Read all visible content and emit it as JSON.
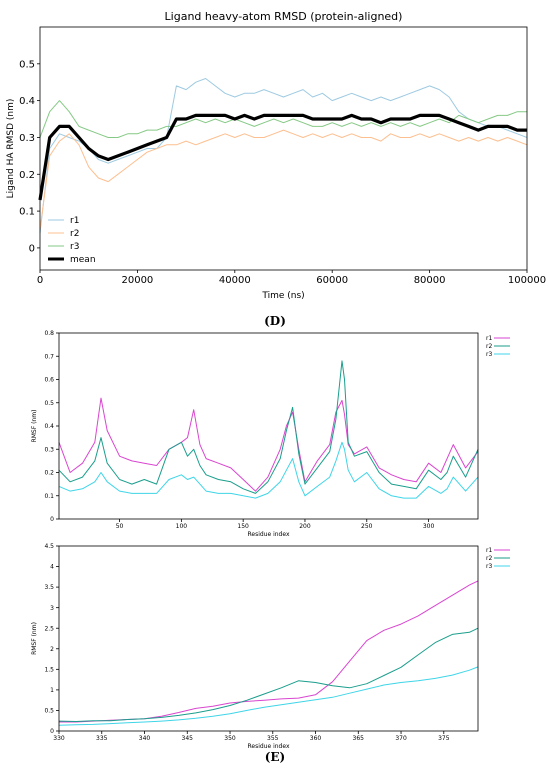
{
  "labels": {
    "panel_d": "(D)",
    "panel_e": "(E)"
  },
  "chart_data": [
    {
      "id": "rmsd",
      "type": "line",
      "title": "Ligand heavy-atom RMSD (protein-aligned)",
      "xlabel": "Time (ns)",
      "ylabel": "Ligand HA RMSD (nm)",
      "xlim": [
        0,
        100000
      ],
      "ylim": [
        -0.06,
        0.6
      ],
      "xticks": [
        0,
        20000,
        40000,
        60000,
        80000,
        100000
      ],
      "yticks": [
        0.0,
        0.1,
        0.2,
        0.3,
        0.4,
        0.5
      ],
      "grid": false,
      "legend_position": "lower-left",
      "x": [
        0,
        2000,
        4000,
        6000,
        8000,
        10000,
        12000,
        14000,
        16000,
        18000,
        20000,
        22000,
        24000,
        26000,
        28000,
        30000,
        32000,
        34000,
        36000,
        38000,
        40000,
        42000,
        44000,
        46000,
        48000,
        50000,
        52000,
        54000,
        56000,
        58000,
        60000,
        62000,
        64000,
        66000,
        68000,
        70000,
        72000,
        74000,
        76000,
        78000,
        80000,
        82000,
        84000,
        86000,
        88000,
        90000,
        92000,
        94000,
        96000,
        98000,
        100000
      ],
      "series": [
        {
          "name": "r1",
          "color": "#9ecae1",
          "values": [
            0.04,
            0.27,
            0.31,
            0.3,
            0.29,
            0.27,
            0.24,
            0.23,
            0.24,
            0.25,
            0.26,
            0.27,
            0.27,
            0.3,
            0.44,
            0.43,
            0.45,
            0.46,
            0.44,
            0.42,
            0.41,
            0.42,
            0.42,
            0.43,
            0.42,
            0.41,
            0.42,
            0.43,
            0.41,
            0.42,
            0.4,
            0.41,
            0.42,
            0.41,
            0.4,
            0.41,
            0.4,
            0.41,
            0.42,
            0.43,
            0.44,
            0.43,
            0.41,
            0.37,
            0.35,
            0.34,
            0.33,
            0.33,
            0.32,
            0.31,
            0.3
          ]
        },
        {
          "name": "r2",
          "color": "#fdbf8f",
          "values": [
            0.05,
            0.25,
            0.29,
            0.31,
            0.28,
            0.22,
            0.19,
            0.18,
            0.2,
            0.22,
            0.24,
            0.26,
            0.27,
            0.28,
            0.28,
            0.29,
            0.28,
            0.29,
            0.3,
            0.31,
            0.3,
            0.31,
            0.3,
            0.3,
            0.31,
            0.32,
            0.31,
            0.3,
            0.31,
            0.3,
            0.31,
            0.3,
            0.31,
            0.3,
            0.3,
            0.29,
            0.31,
            0.3,
            0.3,
            0.31,
            0.3,
            0.31,
            0.3,
            0.29,
            0.3,
            0.29,
            0.3,
            0.29,
            0.3,
            0.29,
            0.28
          ]
        },
        {
          "name": "r3",
          "color": "#86c986",
          "values": [
            0.3,
            0.37,
            0.4,
            0.37,
            0.33,
            0.32,
            0.31,
            0.3,
            0.3,
            0.31,
            0.31,
            0.32,
            0.32,
            0.33,
            0.33,
            0.34,
            0.35,
            0.34,
            0.35,
            0.34,
            0.35,
            0.34,
            0.33,
            0.34,
            0.35,
            0.34,
            0.35,
            0.34,
            0.33,
            0.33,
            0.34,
            0.33,
            0.34,
            0.33,
            0.34,
            0.33,
            0.34,
            0.33,
            0.34,
            0.33,
            0.34,
            0.35,
            0.34,
            0.36,
            0.35,
            0.34,
            0.35,
            0.36,
            0.36,
            0.37,
            0.37
          ]
        },
        {
          "name": "mean",
          "color": "#000000",
          "values": [
            0.13,
            0.3,
            0.33,
            0.33,
            0.3,
            0.27,
            0.25,
            0.24,
            0.25,
            0.26,
            0.27,
            0.28,
            0.29,
            0.3,
            0.35,
            0.35,
            0.36,
            0.36,
            0.36,
            0.36,
            0.35,
            0.36,
            0.35,
            0.36,
            0.36,
            0.36,
            0.36,
            0.36,
            0.35,
            0.35,
            0.35,
            0.35,
            0.36,
            0.35,
            0.35,
            0.34,
            0.35,
            0.35,
            0.35,
            0.36,
            0.36,
            0.36,
            0.35,
            0.34,
            0.33,
            0.32,
            0.33,
            0.33,
            0.33,
            0.32,
            0.32
          ]
        }
      ]
    },
    {
      "id": "rmsf1",
      "type": "line",
      "title": "",
      "xlabel": "Residue index",
      "ylabel": "RMSF (nm)",
      "xlim": [
        1,
        340
      ],
      "ylim": [
        0,
        0.8
      ],
      "xticks": [
        50,
        100,
        150,
        200,
        250,
        300
      ],
      "yticks": [
        0,
        0.1,
        0.2,
        0.3,
        0.4,
        0.5,
        0.6,
        0.7,
        0.8
      ],
      "grid": false,
      "legend_position": "top-right",
      "x": [
        1,
        10,
        20,
        30,
        35,
        40,
        50,
        60,
        70,
        80,
        90,
        100,
        105,
        110,
        115,
        120,
        130,
        140,
        150,
        160,
        170,
        180,
        185,
        190,
        195,
        200,
        210,
        220,
        225,
        230,
        232,
        235,
        240,
        250,
        260,
        270,
        280,
        290,
        300,
        310,
        315,
        320,
        330,
        340
      ],
      "series": [
        {
          "name": "r1",
          "color": "#d946d0",
          "values": [
            0.33,
            0.2,
            0.24,
            0.33,
            0.52,
            0.38,
            0.27,
            0.25,
            0.24,
            0.23,
            0.3,
            0.33,
            0.35,
            0.47,
            0.32,
            0.26,
            0.24,
            0.22,
            0.17,
            0.12,
            0.18,
            0.3,
            0.4,
            0.46,
            0.3,
            0.16,
            0.25,
            0.32,
            0.46,
            0.51,
            0.45,
            0.32,
            0.28,
            0.31,
            0.22,
            0.19,
            0.17,
            0.16,
            0.24,
            0.2,
            0.26,
            0.32,
            0.22,
            0.29
          ]
        },
        {
          "name": "r2",
          "color": "#1a9e8c",
          "values": [
            0.21,
            0.16,
            0.18,
            0.25,
            0.35,
            0.24,
            0.17,
            0.15,
            0.17,
            0.15,
            0.3,
            0.33,
            0.27,
            0.3,
            0.23,
            0.19,
            0.17,
            0.16,
            0.13,
            0.11,
            0.16,
            0.26,
            0.38,
            0.48,
            0.28,
            0.15,
            0.22,
            0.29,
            0.43,
            0.68,
            0.6,
            0.33,
            0.27,
            0.29,
            0.2,
            0.15,
            0.14,
            0.13,
            0.21,
            0.17,
            0.2,
            0.27,
            0.18,
            0.3
          ]
        },
        {
          "name": "r3",
          "color": "#3fd5e8",
          "values": [
            0.14,
            0.12,
            0.13,
            0.16,
            0.2,
            0.16,
            0.12,
            0.11,
            0.11,
            0.11,
            0.17,
            0.19,
            0.17,
            0.18,
            0.15,
            0.12,
            0.11,
            0.11,
            0.1,
            0.09,
            0.11,
            0.16,
            0.21,
            0.26,
            0.16,
            0.1,
            0.14,
            0.18,
            0.25,
            0.33,
            0.3,
            0.21,
            0.16,
            0.2,
            0.13,
            0.1,
            0.09,
            0.09,
            0.14,
            0.11,
            0.13,
            0.18,
            0.12,
            0.18
          ]
        }
      ]
    },
    {
      "id": "rmsf2",
      "type": "line",
      "title": "",
      "xlabel": "Residue index",
      "ylabel": "RMSF (nm)",
      "xlim": [
        330,
        379
      ],
      "ylim": [
        0,
        4.5
      ],
      "xticks": [
        330,
        335,
        340,
        345,
        350,
        355,
        360,
        365,
        370,
        375
      ],
      "yticks": [
        0,
        0.5,
        1,
        1.5,
        2,
        2.5,
        3,
        3.5,
        4,
        4.5
      ],
      "grid": false,
      "legend_position": "top-right",
      "x": [
        330,
        332,
        334,
        336,
        338,
        340,
        342,
        344,
        346,
        348,
        350,
        352,
        354,
        356,
        358,
        360,
        362,
        364,
        366,
        368,
        370,
        372,
        374,
        376,
        378,
        379
      ],
      "series": [
        {
          "name": "r1",
          "color": "#d946d0",
          "values": [
            0.22,
            0.22,
            0.24,
            0.26,
            0.28,
            0.3,
            0.36,
            0.45,
            0.55,
            0.6,
            0.68,
            0.72,
            0.75,
            0.78,
            0.8,
            0.88,
            1.2,
            1.7,
            2.2,
            2.45,
            2.6,
            2.8,
            3.05,
            3.3,
            3.55,
            3.65
          ]
        },
        {
          "name": "r2",
          "color": "#1a9e8c",
          "values": [
            0.24,
            0.23,
            0.25,
            0.25,
            0.28,
            0.3,
            0.33,
            0.38,
            0.44,
            0.52,
            0.62,
            0.75,
            0.9,
            1.05,
            1.22,
            1.18,
            1.1,
            1.05,
            1.15,
            1.35,
            1.55,
            1.85,
            2.15,
            2.35,
            2.4,
            2.5
          ]
        },
        {
          "name": "r3",
          "color": "#3fd5e8",
          "values": [
            0.14,
            0.15,
            0.16,
            0.18,
            0.2,
            0.22,
            0.24,
            0.27,
            0.31,
            0.36,
            0.42,
            0.5,
            0.58,
            0.64,
            0.7,
            0.76,
            0.82,
            0.92,
            1.02,
            1.12,
            1.18,
            1.22,
            1.28,
            1.36,
            1.48,
            1.56
          ]
        }
      ]
    }
  ]
}
